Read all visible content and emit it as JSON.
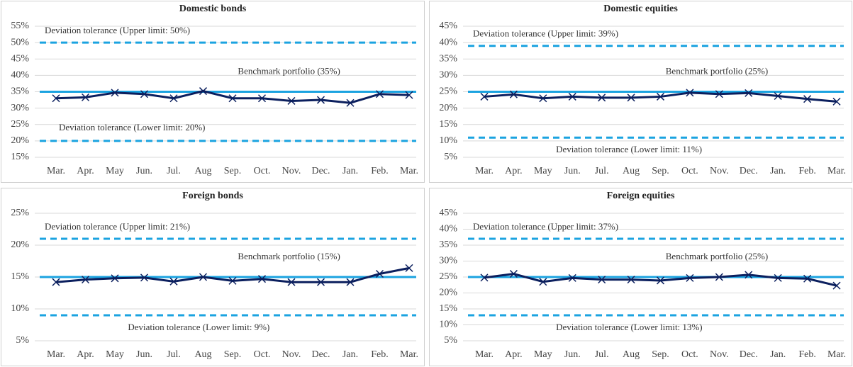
{
  "chart_data": [
    {
      "type": "line",
      "title": "Domestic bonds",
      "categories": [
        "Mar.",
        "Apr.",
        "May",
        "Jun.",
        "Jul.",
        "Aug",
        "Sep.",
        "Oct.",
        "Nov.",
        "Dec.",
        "Jan.",
        "Feb.",
        "Mar."
      ],
      "series": [
        {
          "color": "#0b1f5e",
          "values": [
            33,
            33.3,
            34.7,
            34.3,
            33,
            35.2,
            33,
            33,
            32.2,
            32.5,
            31.6,
            34.3,
            34
          ]
        }
      ],
      "reference_lines": [
        {
          "name": "Deviation tolerance (Upper limit: 50%)",
          "value": 50,
          "color": "#1ba3e0",
          "dashed": true
        },
        {
          "name": "Benchmark portfolio (35%)",
          "value": 35,
          "color": "#1ba3e0",
          "dashed": false
        },
        {
          "name": "Deviation tolerance (Lower limit: 20%)",
          "value": 20,
          "color": "#1ba3e0",
          "dashed": true
        }
      ],
      "ylim": [
        15,
        55
      ],
      "yticks": [
        {
          "value": 15,
          "label": "15%"
        },
        {
          "value": 20,
          "label": "20%"
        },
        {
          "value": 25,
          "label": "25%"
        },
        {
          "value": 30,
          "label": "30%"
        },
        {
          "value": 35,
          "label": "35%"
        },
        {
          "value": 40,
          "label": "40%"
        },
        {
          "value": 45,
          "label": "45%"
        },
        {
          "value": 50,
          "label": "50%"
        },
        {
          "value": 55,
          "label": "55%"
        }
      ],
      "grid": true
    },
    {
      "type": "line",
      "title": "Domestic equities",
      "categories": [
        "Mar.",
        "Apr.",
        "May",
        "Jun.",
        "Jul.",
        "Aug",
        "Sep.",
        "Oct.",
        "Nov.",
        "Dec.",
        "Jan.",
        "Feb.",
        "Mar."
      ],
      "series": [
        {
          "color": "#0b1f5e",
          "values": [
            23.5,
            24.2,
            23,
            23.5,
            23.2,
            23.2,
            23.5,
            24.7,
            24.3,
            24.6,
            23.7,
            22.8,
            22
          ]
        }
      ],
      "reference_lines": [
        {
          "name": "Deviation tolerance (Upper limit: 39%)",
          "value": 39,
          "color": "#1ba3e0",
          "dashed": true
        },
        {
          "name": "Benchmark portfolio (25%)",
          "value": 25,
          "color": "#1ba3e0",
          "dashed": false
        },
        {
          "name": "Deviation tolerance (Lower limit: 11%)",
          "value": 11,
          "color": "#1ba3e0",
          "dashed": true
        }
      ],
      "ylim": [
        5,
        45
      ],
      "yticks": [
        {
          "value": 5,
          "label": "5%"
        },
        {
          "value": 10,
          "label": "10%"
        },
        {
          "value": 15,
          "label": "15%"
        },
        {
          "value": 20,
          "label": "20%"
        },
        {
          "value": 25,
          "label": "25%"
        },
        {
          "value": 30,
          "label": "30%"
        },
        {
          "value": 35,
          "label": "35%"
        },
        {
          "value": 40,
          "label": "40%"
        },
        {
          "value": 45,
          "label": "45%"
        }
      ],
      "grid": true
    },
    {
      "type": "line",
      "title": "Foreign bonds",
      "categories": [
        "Mar.",
        "Apr.",
        "May",
        "Jun.",
        "Jul.",
        "Aug",
        "Sep.",
        "Oct.",
        "Nov.",
        "Dec.",
        "Jan.",
        "Feb.",
        "Mar."
      ],
      "series": [
        {
          "color": "#0b1f5e",
          "values": [
            14.2,
            14.6,
            14.8,
            14.9,
            14.3,
            15,
            14.4,
            14.7,
            14.2,
            14.2,
            14.2,
            15.5,
            16.4
          ]
        }
      ],
      "reference_lines": [
        {
          "name": "Deviation tolerance (Upper limit: 21%)",
          "value": 21,
          "color": "#1ba3e0",
          "dashed": true
        },
        {
          "name": "Benchmark portfolio (15%)",
          "value": 15,
          "color": "#1ba3e0",
          "dashed": false
        },
        {
          "name": "Deviation tolerance (Lower limit: 9%)",
          "value": 9,
          "color": "#1ba3e0",
          "dashed": true
        }
      ],
      "ylim": [
        5,
        25
      ],
      "yticks": [
        {
          "value": 5,
          "label": "5%"
        },
        {
          "value": 10,
          "label": "10%"
        },
        {
          "value": 15,
          "label": "15%"
        },
        {
          "value": 20,
          "label": "20%"
        },
        {
          "value": 25,
          "label": "25%"
        }
      ],
      "grid": true
    },
    {
      "type": "line",
      "title": "Foreign equities",
      "categories": [
        "Mar.",
        "Apr.",
        "May",
        "Jun.",
        "Jul.",
        "Aug",
        "Sep.",
        "Oct.",
        "Nov.",
        "Dec.",
        "Jan.",
        "Feb.",
        "Mar."
      ],
      "series": [
        {
          "color": "#0b1f5e",
          "values": [
            24.8,
            26,
            23.5,
            24.7,
            24.2,
            24.2,
            23.9,
            24.7,
            25,
            25.7,
            24.7,
            24.5,
            22.3
          ]
        }
      ],
      "reference_lines": [
        {
          "name": "Deviation tolerance (Upper limit: 37%)",
          "value": 37,
          "color": "#1ba3e0",
          "dashed": true
        },
        {
          "name": "Benchmark portfolio (25%)",
          "value": 25,
          "color": "#1ba3e0",
          "dashed": false
        },
        {
          "name": "Deviation tolerance (Lower limit: 13%)",
          "value": 13,
          "color": "#1ba3e0",
          "dashed": true
        }
      ],
      "ylim": [
        5,
        45
      ],
      "yticks": [
        {
          "value": 5,
          "label": "5%"
        },
        {
          "value": 10,
          "label": "10%"
        },
        {
          "value": 15,
          "label": "15%"
        },
        {
          "value": 20,
          "label": "20%"
        },
        {
          "value": 25,
          "label": "25%"
        },
        {
          "value": 30,
          "label": "30%"
        },
        {
          "value": 35,
          "label": "35%"
        },
        {
          "value": 40,
          "label": "40%"
        },
        {
          "value": 45,
          "label": "45%"
        }
      ],
      "grid": true
    }
  ]
}
